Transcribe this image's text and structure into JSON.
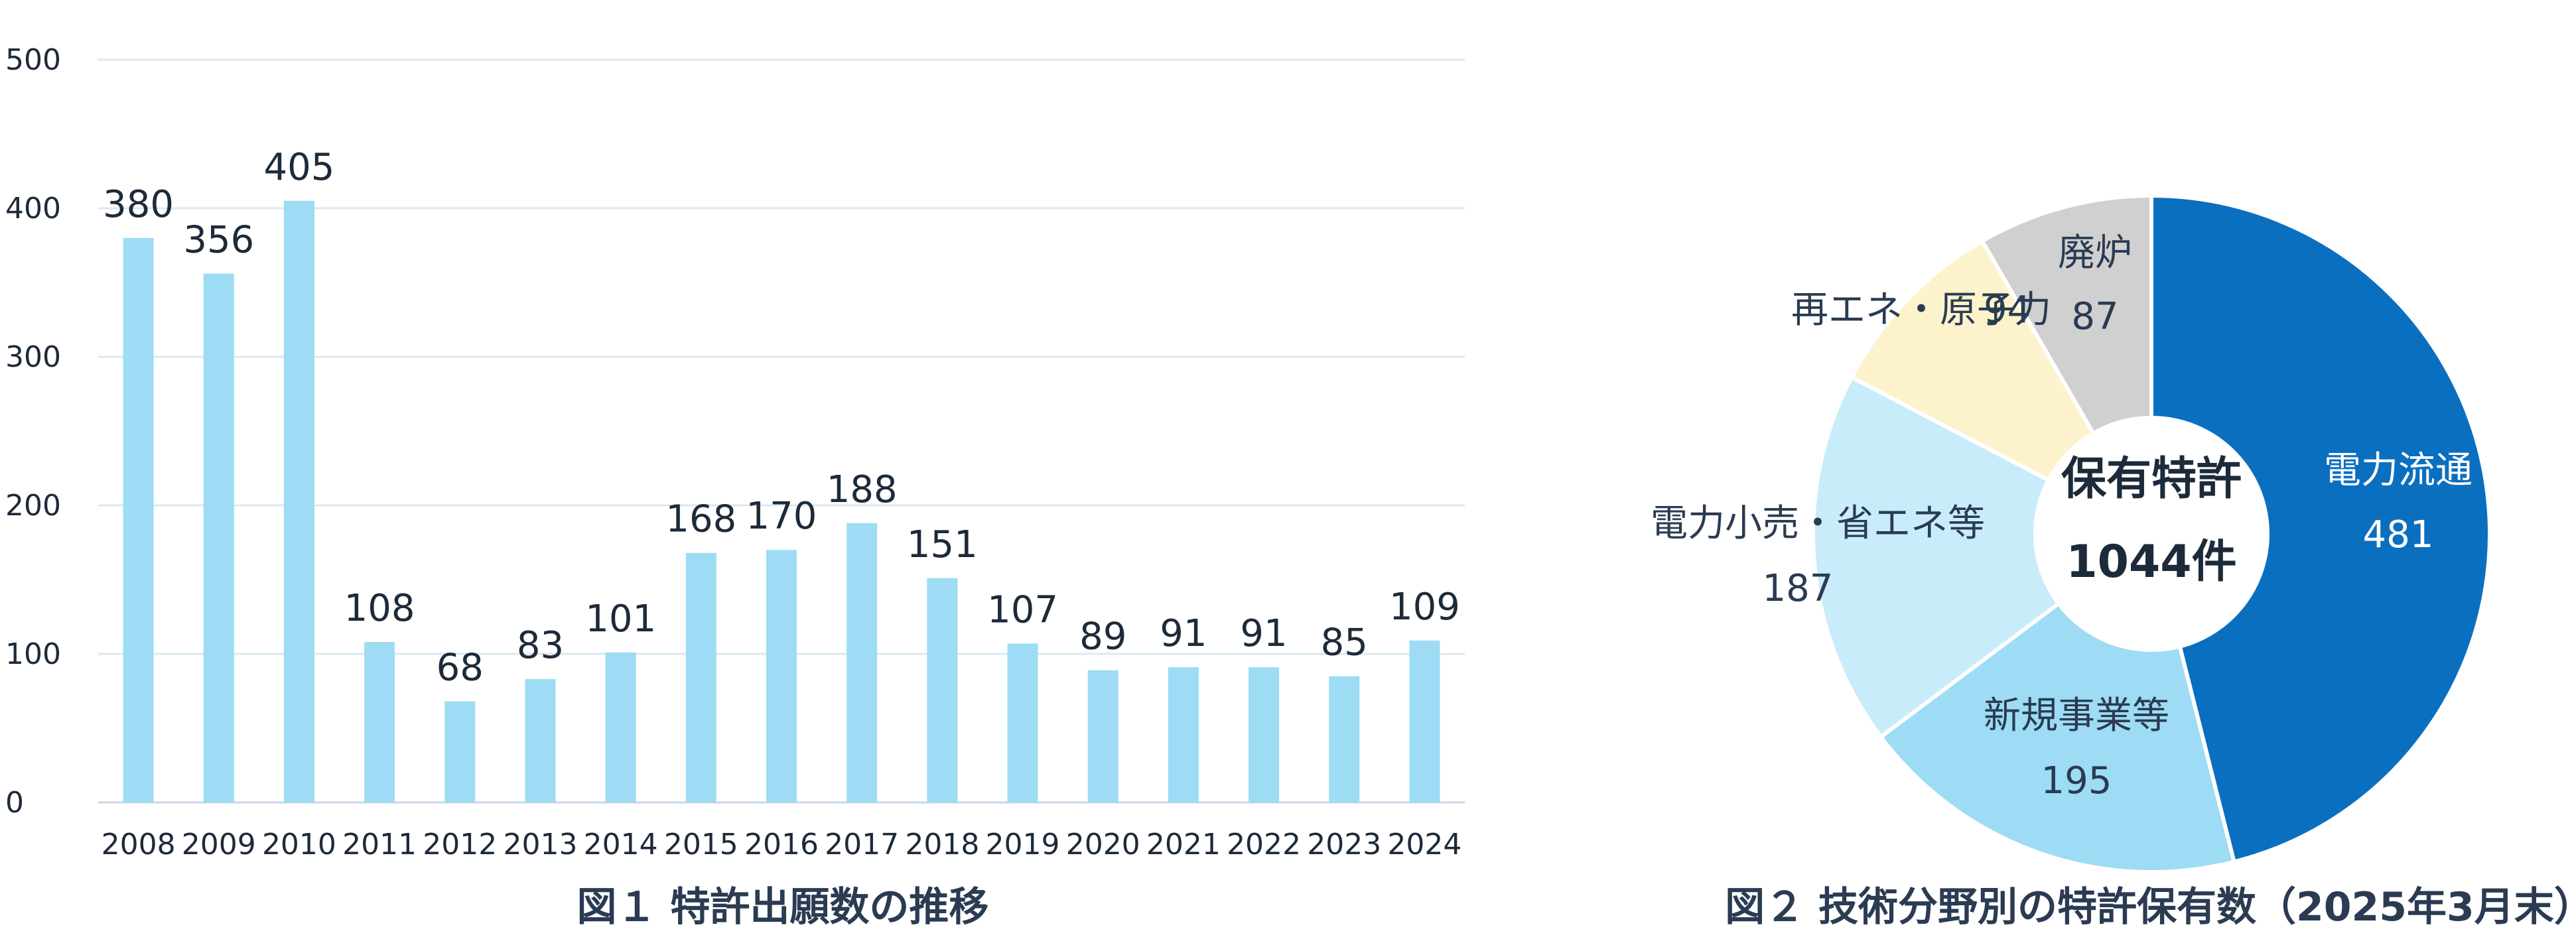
{
  "chart_data": [
    {
      "type": "bar",
      "title": "図１ 特許出願数の推移",
      "categories": [
        "2008",
        "2009",
        "2010",
        "2011",
        "2012",
        "2013",
        "2014",
        "2015",
        "2016",
        "2017",
        "2018",
        "2019",
        "2020",
        "2021",
        "2022",
        "2023",
        "2024"
      ],
      "values": [
        380,
        356,
        405,
        108,
        68,
        83,
        101,
        168,
        170,
        188,
        151,
        107,
        89,
        91,
        91,
        85,
        109
      ],
      "ylim": [
        0,
        500
      ],
      "yticks": [
        0,
        100,
        200,
        300,
        400,
        500
      ],
      "xlabel": "",
      "ylabel": "",
      "grid": true,
      "bar_color": "#9ddcf4",
      "grid_color": "#dce8f2"
    },
    {
      "type": "pie",
      "title": "図２ 技術分野別の特許保有数（2025年3月末）",
      "center_label": [
        "保有特許",
        "1044件"
      ],
      "slices": [
        {
          "label": "電力流通",
          "value": 481,
          "color": "#0b6fc0"
        },
        {
          "label": "新規事業等",
          "value": 195,
          "color": "#9ddcf4"
        },
        {
          "label": "電力小売・省エネ等",
          "value": 187,
          "color": "#c9ecfa"
        },
        {
          "label": "再エネ・原子力",
          "value": 94,
          "color": "#fcf3cc"
        },
        {
          "label": "廃炉",
          "value": 87,
          "color": "#d0d0d0"
        }
      ]
    }
  ]
}
